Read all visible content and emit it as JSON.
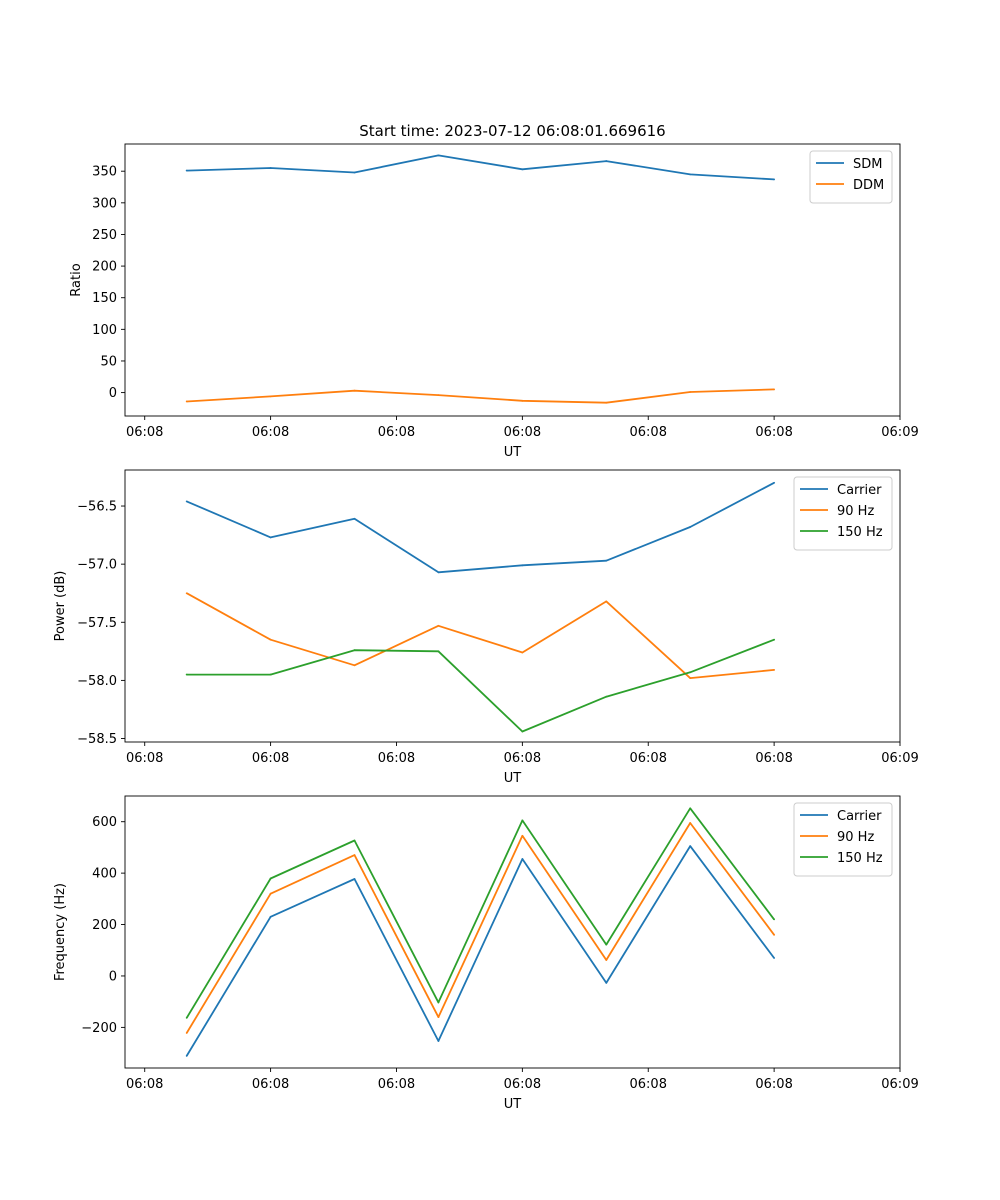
{
  "figure_title": "Start time: 2023-07-12 06:08:01.669616",
  "chart_data": [
    {
      "type": "line",
      "title": "Start time: 2023-07-12 06:08:01.669616",
      "xlabel": "UT",
      "ylabel": "Ratio",
      "x": [
        1,
        2,
        3,
        4,
        5,
        6,
        7,
        8
      ],
      "xlim": [
        0.265,
        9.5
      ],
      "xticks": [
        0.5,
        2,
        3.5,
        5,
        6.5,
        8,
        9.5
      ],
      "xtick_labels": [
        "06:08",
        "06:08",
        "06:08",
        "06:08",
        "06:08",
        "06:08",
        "06:09"
      ],
      "ylim": [
        -37,
        393
      ],
      "yticks": [
        0,
        50,
        100,
        150,
        200,
        250,
        300,
        350
      ],
      "ytick_labels": [
        "0",
        "50",
        "100",
        "150",
        "200",
        "250",
        "300",
        "350"
      ],
      "legend": "top-right",
      "series": [
        {
          "name": "SDM",
          "color": "#1f77b4",
          "values": [
            351,
            355,
            348,
            375,
            353,
            366,
            345,
            337
          ]
        },
        {
          "name": "DDM",
          "color": "#ff7f0e",
          "values": [
            -14,
            -6,
            3,
            -4,
            -13,
            -16,
            1,
            5
          ]
        }
      ]
    },
    {
      "type": "line",
      "title": "",
      "xlabel": "UT",
      "ylabel": "Power (dB)",
      "x": [
        1,
        2,
        3,
        4,
        5,
        6,
        7,
        8
      ],
      "xlim": [
        0.265,
        9.5
      ],
      "xticks": [
        0.5,
        2,
        3.5,
        5,
        6.5,
        8,
        9.5
      ],
      "xtick_labels": [
        "06:08",
        "06:08",
        "06:08",
        "06:08",
        "06:08",
        "06:08",
        "06:09"
      ],
      "ylim": [
        -58.53,
        -56.19
      ],
      "yticks": [
        -56.5,
        -57.0,
        -57.5,
        -58.0,
        -58.5
      ],
      "ytick_labels": [
        "−56.5",
        "−57.0",
        "−57.5",
        "−58.0",
        "−58.5"
      ],
      "legend": "top-right",
      "series": [
        {
          "name": "Carrier",
          "color": "#1f77b4",
          "values": [
            -56.46,
            -56.77,
            -56.61,
            -57.07,
            -57.01,
            -56.97,
            -56.68,
            -56.3
          ]
        },
        {
          "name": "90 Hz",
          "color": "#ff7f0e",
          "values": [
            -57.25,
            -57.65,
            -57.87,
            -57.53,
            -57.76,
            -57.32,
            -57.98,
            -57.91
          ]
        },
        {
          "name": "150 Hz",
          "color": "#2ca02c",
          "values": [
            -57.95,
            -57.95,
            -57.74,
            -57.75,
            -58.44,
            -58.14,
            -57.93,
            -57.65
          ]
        }
      ]
    },
    {
      "type": "line",
      "title": "",
      "xlabel": "UT",
      "ylabel": "Frequency (Hz)",
      "x": [
        1,
        2,
        3,
        4,
        5,
        6,
        7,
        8
      ],
      "xlim": [
        0.265,
        9.5
      ],
      "xticks": [
        0.5,
        2,
        3.5,
        5,
        6.5,
        8,
        9.5
      ],
      "xtick_labels": [
        "06:08",
        "06:08",
        "06:08",
        "06:08",
        "06:08",
        "06:08",
        "06:09"
      ],
      "ylim": [
        -358,
        700
      ],
      "yticks": [
        -200,
        0,
        200,
        400,
        600
      ],
      "ytick_labels": [
        "−200",
        "0",
        "200",
        "400",
        "600"
      ],
      "legend": "top-right",
      "series": [
        {
          "name": "Carrier",
          "color": "#1f77b4",
          "values": [
            -311,
            230,
            377,
            -253,
            455,
            -27,
            505,
            70
          ]
        },
        {
          "name": "90 Hz",
          "color": "#ff7f0e",
          "values": [
            -222,
            320,
            470,
            -160,
            545,
            62,
            595,
            160
          ]
        },
        {
          "name": "150 Hz",
          "color": "#2ca02c",
          "values": [
            -163,
            379,
            527,
            -103,
            605,
            122,
            652,
            220
          ]
        }
      ]
    }
  ]
}
